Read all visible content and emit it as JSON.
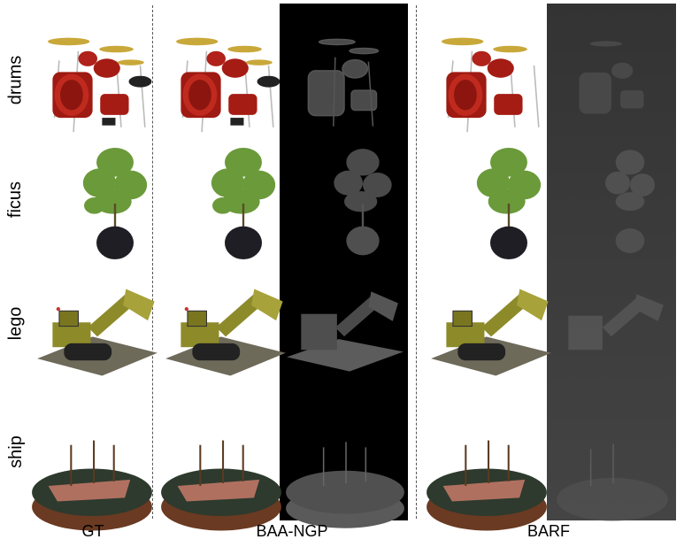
{
  "rows": [
    {
      "label": "drums"
    },
    {
      "label": "ficus"
    },
    {
      "label": "lego"
    },
    {
      "label": "ship"
    }
  ],
  "columns": [
    {
      "label": "GT"
    },
    {
      "label": "BAA-NGP"
    },
    {
      "label": "BARF"
    }
  ],
  "colors": {
    "divider": "#555555",
    "depth_black": "#000000",
    "depth_gray": "#3a3a3a"
  }
}
